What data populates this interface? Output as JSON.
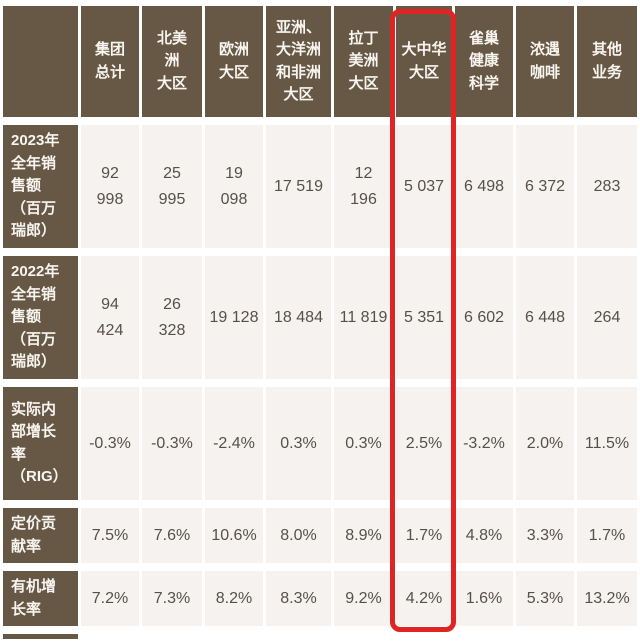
{
  "colors": {
    "header_brown": "#665845",
    "cell_background": "#f5f2ef",
    "data_text": "#55504a",
    "header_text": "#f8f4ef",
    "highlight_red": "#e02424",
    "page_background": "#ffffff"
  },
  "table": {
    "corner_label": "",
    "columns": [
      {
        "label": "集团\n总计"
      },
      {
        "label": "北美\n洲\n大区"
      },
      {
        "label": "欧洲\n大区"
      },
      {
        "label": "亚洲、\n大洋洲\n和非洲\n大区"
      },
      {
        "label": "拉丁\n美洲\n大区"
      },
      {
        "label": "大中华\n大区"
      },
      {
        "label": "雀巢\n健康\n科学"
      },
      {
        "label": "浓遇\n咖啡"
      },
      {
        "label": "其他\n业务"
      }
    ],
    "rows": [
      {
        "label": "2023年\n全年销\n售额\n（百万\n瑞郎）",
        "values": [
          "92\n998",
          "25\n995",
          "19\n098",
          "17 519",
          "12\n196",
          "5 037",
          "6 498",
          "6 372",
          "283"
        ]
      },
      {
        "label": "2022年\n全年销\n售额\n（百万\n瑞郎）",
        "values": [
          "94\n424",
          "26\n328",
          "19 128",
          "18 484",
          "11 819",
          "5 351",
          "6 602",
          "6 448",
          "264"
        ]
      },
      {
        "label": "实际内\n部增长\n率\n（RIG）",
        "values": [
          "-0.3%",
          "-0.3%",
          "-2.4%",
          "0.3%",
          "0.3%",
          "2.5%",
          "-3.2%",
          "2.0%",
          "11.5%"
        ]
      },
      {
        "label": "定价贡\n献率",
        "values": [
          "7.5%",
          "7.6%",
          "10.6%",
          "8.0%",
          "8.9%",
          "1.7%",
          "4.8%",
          "3.3%",
          "1.7%"
        ]
      },
      {
        "label": "有机增\n长率",
        "values": [
          "7.2%",
          "7.3%",
          "8.2%",
          "8.3%",
          "9.2%",
          "4.2%",
          "1.6%",
          "5.3%",
          "13.2%"
        ]
      }
    ],
    "highlighted_column": "大中华大区"
  },
  "chart_data": {
    "type": "table",
    "title": "",
    "columns": [
      "集团总计",
      "北美洲大区",
      "欧洲大区",
      "亚洲、大洋洲和非洲大区",
      "拉丁美洲大区",
      "大中华大区",
      "雀巢健康科学",
      "浓遇咖啡",
      "其他业务"
    ],
    "rows": [
      {
        "label": "2023年全年销售额（百万瑞郎）",
        "values": [
          92998,
          25995,
          19098,
          17519,
          12196,
          5037,
          6498,
          6372,
          283
        ]
      },
      {
        "label": "2022年全年销售额（百万瑞郎）",
        "values": [
          94424,
          26328,
          19128,
          18484,
          11819,
          5351,
          6602,
          6448,
          264
        ]
      },
      {
        "label": "实际内部增长率（RIG）",
        "values": [
          "-0.3%",
          "-0.3%",
          "-2.4%",
          "0.3%",
          "0.3%",
          "2.5%",
          "-3.2%",
          "2.0%",
          "11.5%"
        ]
      },
      {
        "label": "定价贡献率",
        "values": [
          "7.5%",
          "7.6%",
          "10.6%",
          "8.0%",
          "8.9%",
          "1.7%",
          "4.8%",
          "3.3%",
          "1.7%"
        ]
      },
      {
        "label": "有机增长率",
        "values": [
          "7.2%",
          "7.3%",
          "8.2%",
          "8.3%",
          "9.2%",
          "4.2%",
          "1.6%",
          "5.3%",
          "13.2%"
        ]
      }
    ],
    "highlighted_column": "大中华大区",
    "legend_position": "none",
    "grid": "white-gaps-between-cells"
  }
}
